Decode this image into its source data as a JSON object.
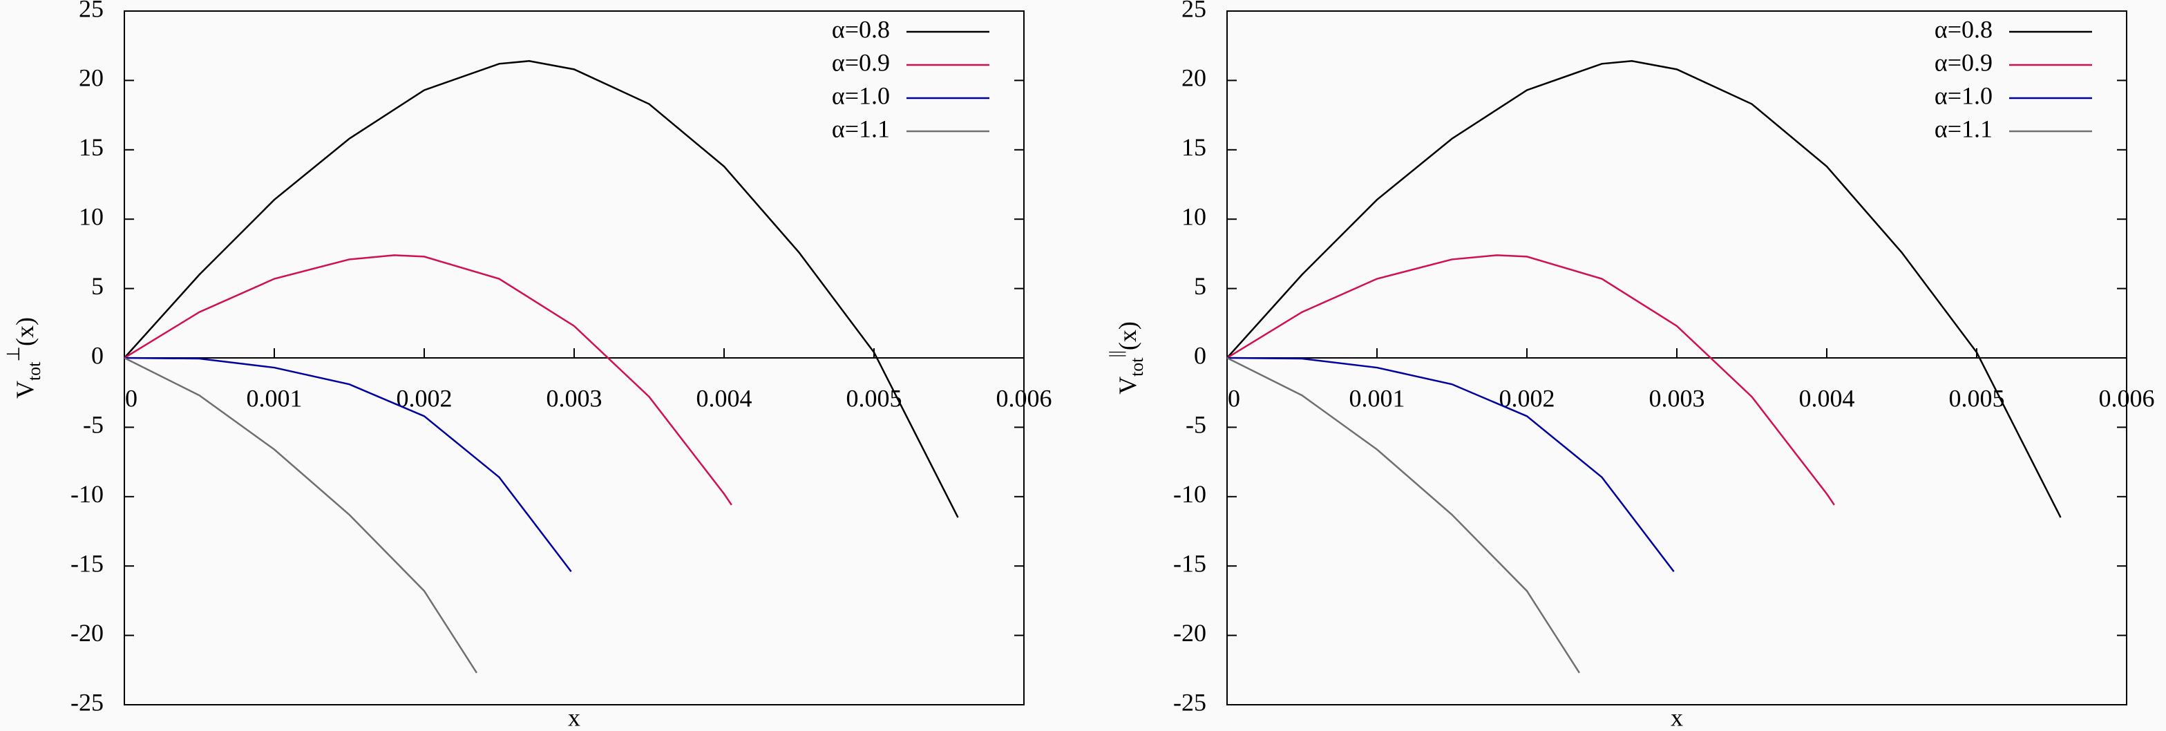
{
  "chart_data": [
    {
      "type": "line",
      "ylabel": {
        "base": "V",
        "sub": "tot",
        "sup": "⊥",
        "tail": "(x)"
      },
      "xlabel": "x",
      "xlim": [
        0,
        0.006
      ],
      "xticks": [
        0,
        0.001,
        0.002,
        0.003,
        0.004,
        0.005,
        0.006
      ],
      "ylim": [
        -25,
        25
      ],
      "yticks": [
        -25,
        -20,
        -15,
        -10,
        -5,
        0,
        5,
        10,
        15,
        20,
        25
      ],
      "legend": "upper right",
      "series": [
        {
          "name": "α=0.8",
          "color": "#000000",
          "x": [
            0,
            0.0005,
            0.001,
            0.0015,
            0.002,
            0.0025,
            0.0027,
            0.003,
            0.0035,
            0.004,
            0.0045,
            0.005,
            0.00556
          ],
          "values": [
            0,
            6.0,
            11.4,
            15.8,
            19.3,
            21.2,
            21.4,
            20.8,
            18.3,
            13.8,
            7.6,
            0.4,
            -11.5
          ]
        },
        {
          "name": "α=0.9",
          "color": "#d0104f",
          "x": [
            0,
            0.0005,
            0.001,
            0.0015,
            0.0018,
            0.002,
            0.0025,
            0.003,
            0.0035,
            0.004,
            0.00405
          ],
          "values": [
            0,
            3.3,
            5.7,
            7.1,
            7.4,
            7.3,
            5.7,
            2.3,
            -2.8,
            -9.8,
            -10.6
          ]
        },
        {
          "name": "α=1.0",
          "color": "#0000a0",
          "x": [
            0,
            0.0005,
            0.001,
            0.0015,
            0.002,
            0.0025,
            0.00298
          ],
          "values": [
            0,
            -0.05,
            -0.7,
            -1.9,
            -4.2,
            -8.6,
            -15.4
          ]
        },
        {
          "name": "α=1.1",
          "color": "#707070",
          "x": [
            0,
            0.0005,
            0.001,
            0.0015,
            0.002,
            0.00235
          ],
          "values": [
            0,
            -2.7,
            -6.6,
            -11.3,
            -16.8,
            -22.7
          ]
        }
      ]
    },
    {
      "type": "line",
      "ylabel": {
        "base": "V",
        "sub": "tot",
        "sup": "||",
        "tail": "(x)"
      },
      "xlabel": "x",
      "xlim": [
        0,
        0.006
      ],
      "xticks": [
        0,
        0.001,
        0.002,
        0.003,
        0.004,
        0.005,
        0.006
      ],
      "ylim": [
        -25,
        25
      ],
      "yticks": [
        -25,
        -20,
        -15,
        -10,
        -5,
        0,
        5,
        10,
        15,
        20,
        25
      ],
      "legend": "upper right",
      "series": [
        {
          "name": "α=0.8",
          "color": "#000000",
          "x": [
            0,
            0.0005,
            0.001,
            0.0015,
            0.002,
            0.0025,
            0.0027,
            0.003,
            0.0035,
            0.004,
            0.0045,
            0.005,
            0.00556
          ],
          "values": [
            0,
            6.0,
            11.4,
            15.8,
            19.3,
            21.2,
            21.4,
            20.8,
            18.3,
            13.8,
            7.6,
            0.4,
            -11.5
          ]
        },
        {
          "name": "α=0.9",
          "color": "#d0104f",
          "x": [
            0,
            0.0005,
            0.001,
            0.0015,
            0.0018,
            0.002,
            0.0025,
            0.003,
            0.0035,
            0.004,
            0.00405
          ],
          "values": [
            0,
            3.3,
            5.7,
            7.1,
            7.4,
            7.3,
            5.7,
            2.3,
            -2.8,
            -9.8,
            -10.6
          ]
        },
        {
          "name": "α=1.0",
          "color": "#0000a0",
          "x": [
            0,
            0.0005,
            0.001,
            0.0015,
            0.002,
            0.0025,
            0.00298
          ],
          "values": [
            0,
            -0.05,
            -0.7,
            -1.9,
            -4.2,
            -8.6,
            -15.4
          ]
        },
        {
          "name": "α=1.1",
          "color": "#707070",
          "x": [
            0,
            0.0005,
            0.001,
            0.0015,
            0.002,
            0.00235
          ],
          "values": [
            0,
            -2.7,
            -6.6,
            -11.3,
            -16.8,
            -22.7
          ]
        }
      ]
    }
  ]
}
